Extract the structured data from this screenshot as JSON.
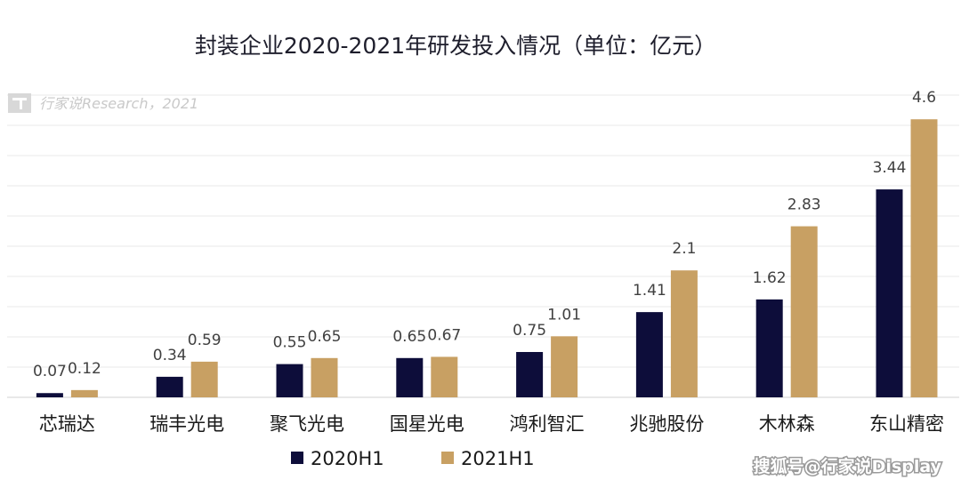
{
  "chart_data": {
    "type": "bar",
    "title": "封装企业2020-2021年研发投入情况（单位：亿元）",
    "categories": [
      "芯瑞达",
      "瑞丰光电",
      "聚飞光电",
      "国星光电",
      "鸿利智汇",
      "兆驰股份",
      "木林森",
      "东山精密"
    ],
    "series": [
      {
        "name": "2020H1",
        "color": "#0d0d3a",
        "values": [
          0.07,
          0.34,
          0.55,
          0.65,
          0.75,
          1.41,
          1.62,
          3.44
        ]
      },
      {
        "name": "2021H1",
        "color": "#c8a063",
        "values": [
          0.12,
          0.59,
          0.65,
          0.67,
          1.01,
          2.1,
          2.83,
          4.6
        ]
      }
    ],
    "value_labels": [
      [
        "0.07",
        "0.34",
        "0.55",
        "0.65",
        "0.75",
        "1.41",
        "1.62",
        "3.44"
      ],
      [
        "0.12",
        "0.59",
        "0.65",
        "0.67",
        "1.01",
        "2.1",
        "2.83",
        "4.6"
      ]
    ],
    "ylim": [
      0,
      5
    ],
    "grid": true,
    "legend": "bottom-center",
    "xlabel": "",
    "ylabel": ""
  },
  "watermark": "行家说Research，2021",
  "credit": "搜狐号@行家说Display"
}
